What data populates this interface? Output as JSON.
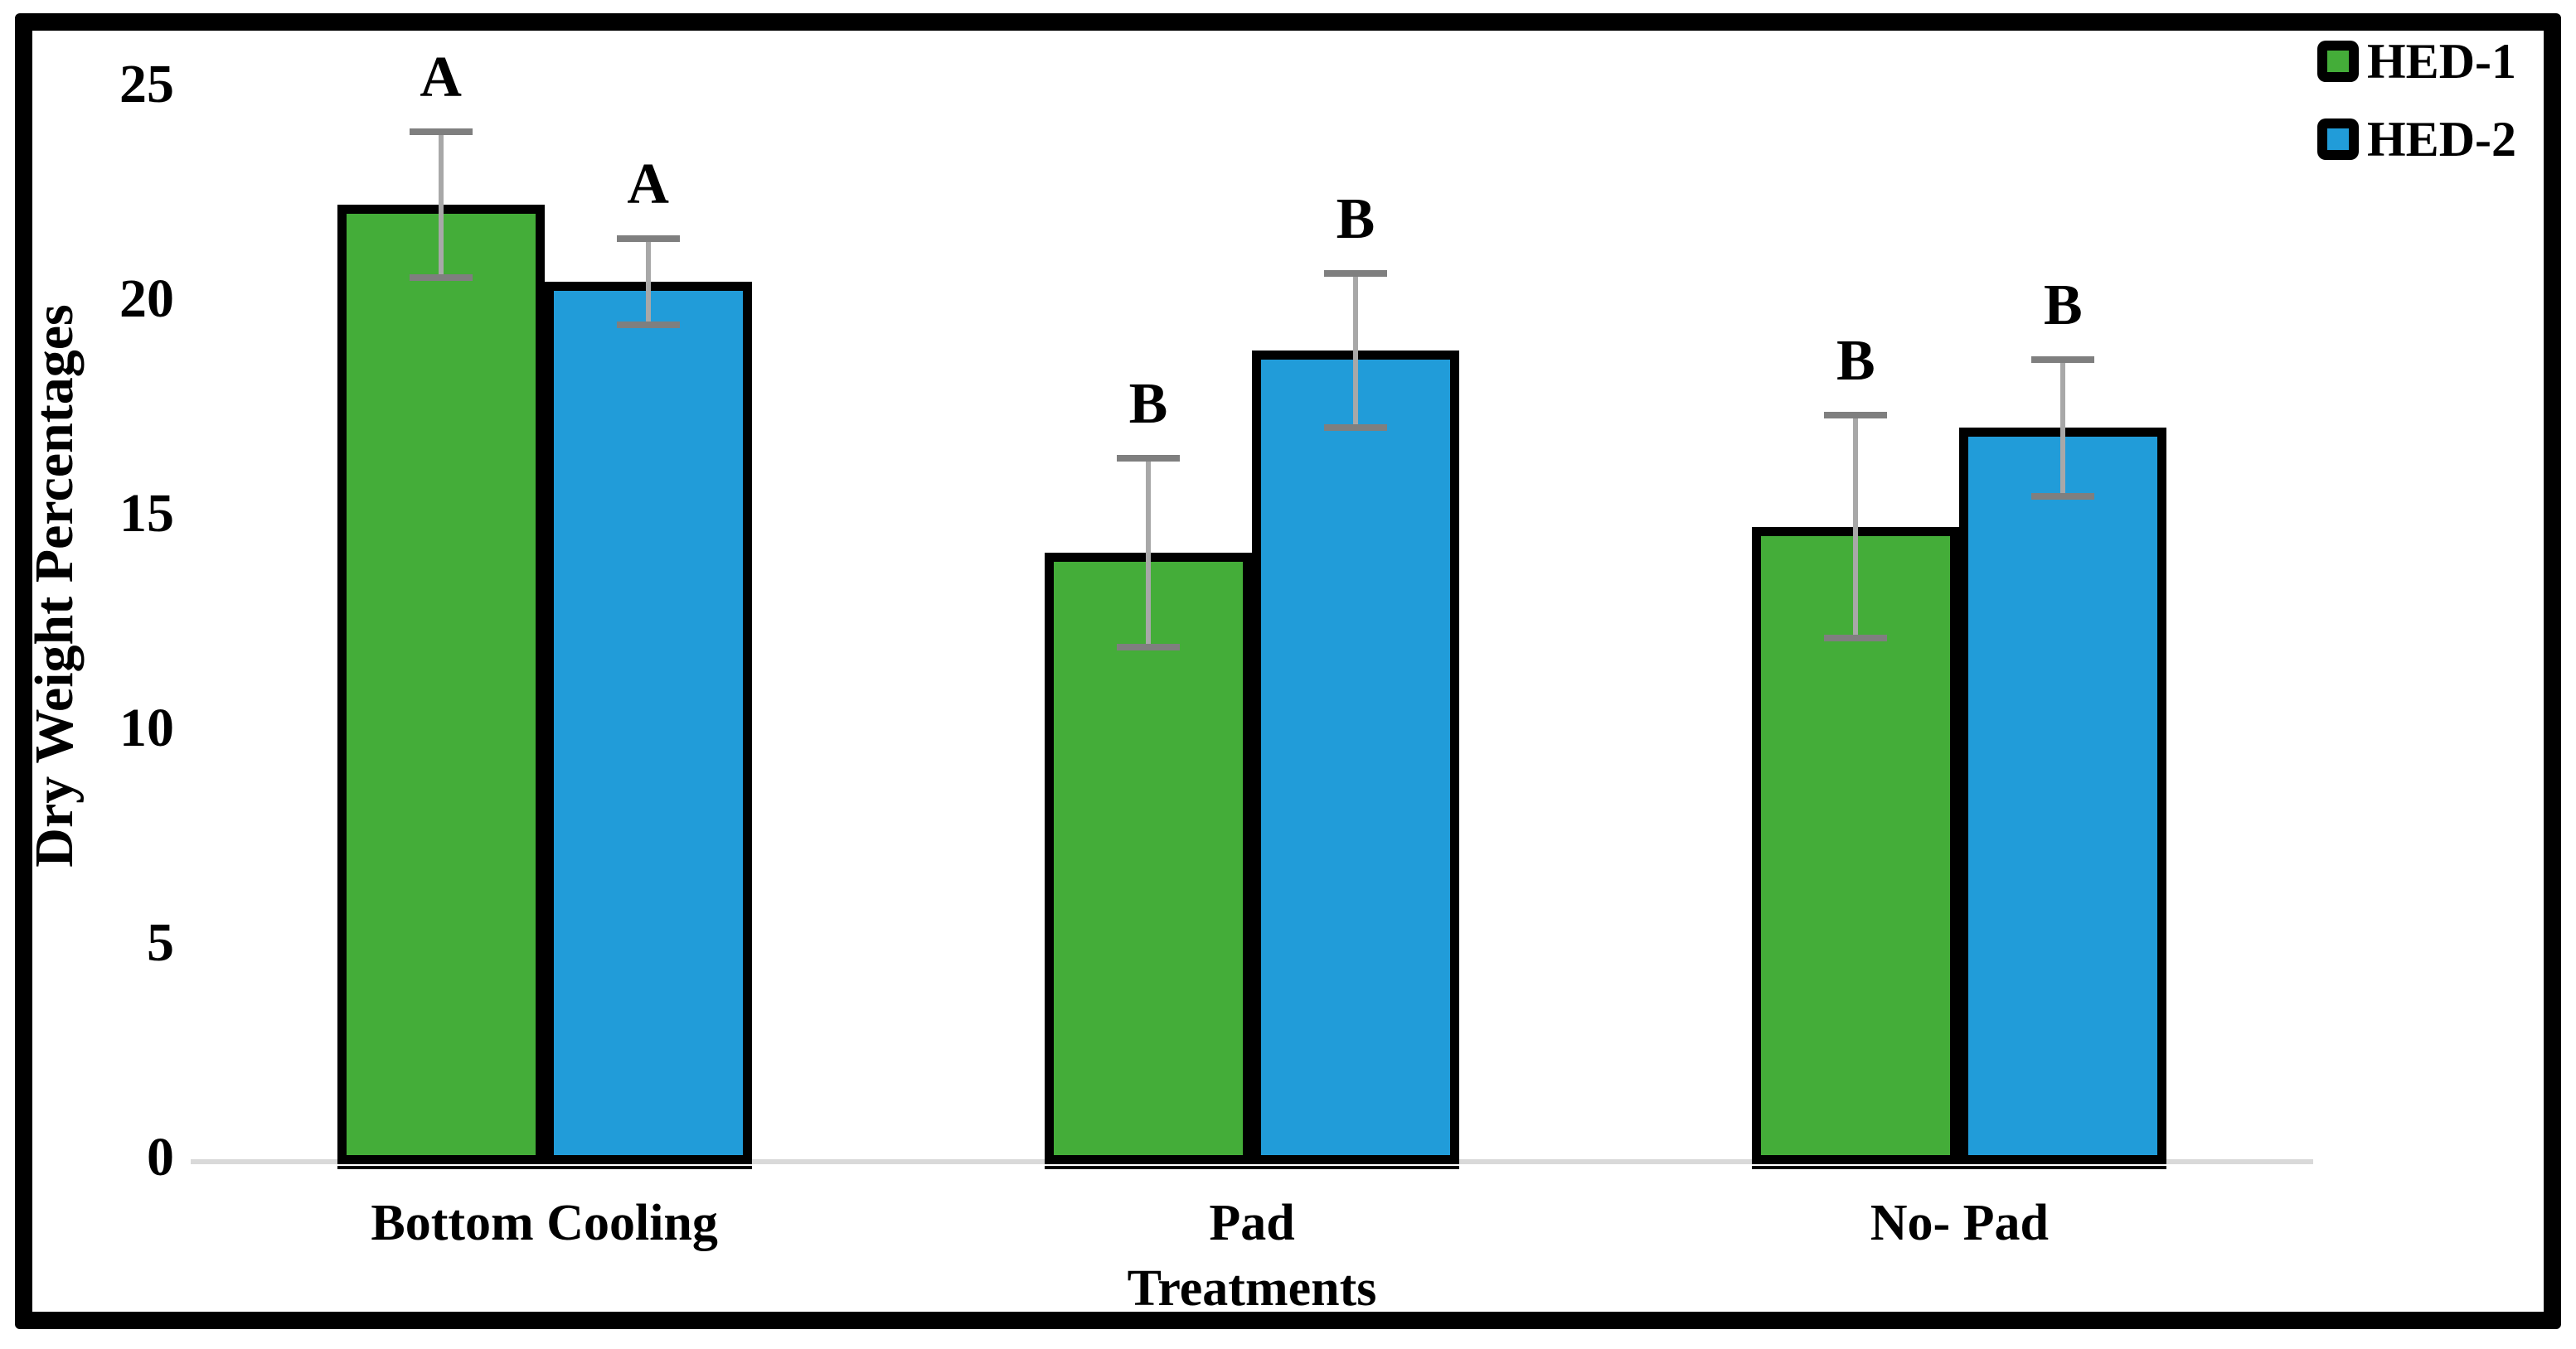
{
  "figure": {
    "background": "#ffffff",
    "frame_color": "#000000"
  },
  "legend": {
    "items": [
      {
        "label": "HED-1",
        "color": "#44AD39"
      },
      {
        "label": "HED-2",
        "color": "#219CD9"
      }
    ]
  },
  "chart_data": {
    "type": "bar",
    "title": "",
    "xlabel": "Treatments",
    "ylabel": "Dry Weight Percentages",
    "categories": [
      "Bottom Cooling",
      "Pad",
      "No- Pad"
    ],
    "series": [
      {
        "name": "HED-1",
        "color": "#44AD39",
        "values": [
          22.2,
          14.1,
          14.7
        ],
        "errors": [
          1.7,
          2.2,
          2.6
        ],
        "sig_letters": [
          "A",
          "B",
          "B"
        ]
      },
      {
        "name": "HED-2",
        "color": "#219CD9",
        "values": [
          20.4,
          18.8,
          17.0
        ],
        "errors": [
          1.0,
          1.8,
          1.6
        ],
        "sig_letters": [
          "A",
          "B",
          "B"
        ]
      }
    ],
    "ylim": [
      0,
      25
    ],
    "yticks": [
      0,
      5,
      10,
      15,
      20,
      25
    ],
    "grid": false,
    "legend_position": "top-right",
    "bar_border_color": "#000000",
    "error_bar_color": "#a8a8a8",
    "error_cap_color": "#7f7f7f",
    "axis_line_color": "#d9d9d9"
  }
}
